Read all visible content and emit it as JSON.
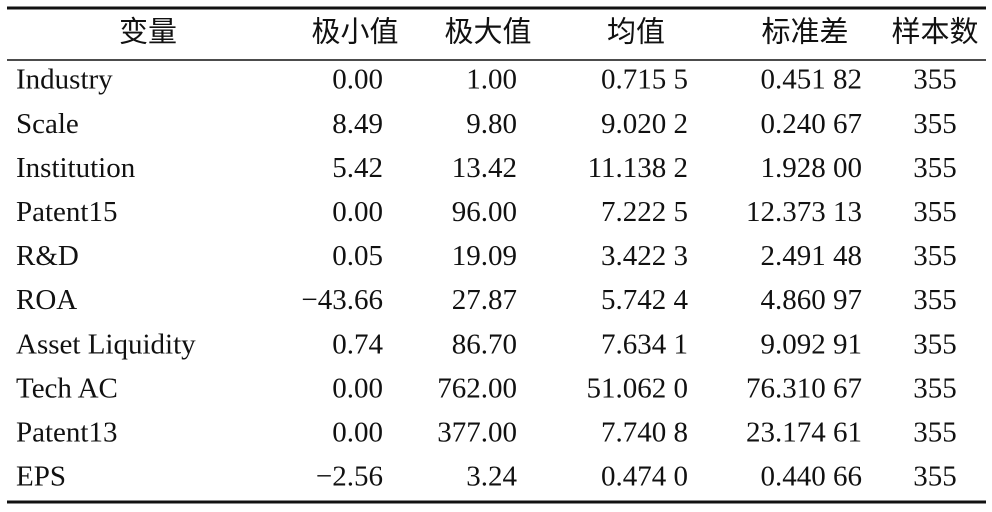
{
  "table": {
    "header": [
      "变量",
      "极小值",
      "极大值",
      "均值",
      "标准差",
      "样本数"
    ],
    "rows": [
      [
        "Industry",
        "0.00",
        "1.00",
        "0.715 5",
        "0.451 82",
        "355"
      ],
      [
        "Scale",
        "8.49",
        "9.80",
        "9.020 2",
        "0.240 67",
        "355"
      ],
      [
        "Institution",
        "5.42",
        "13.42",
        "11.138 2",
        "1.928 00",
        "355"
      ],
      [
        "Patent15",
        "0.00",
        "96.00",
        "7.222 5",
        "12.373 13",
        "355"
      ],
      [
        "R&D",
        "0.05",
        "19.09",
        "3.422 3",
        "2.491 48",
        "355"
      ],
      [
        "ROA",
        "−43.66",
        "27.87",
        "5.742 4",
        "4.860 97",
        "355"
      ],
      [
        "Asset Liquidity",
        "0.74",
        "86.70",
        "7.634 1",
        "9.092 91",
        "355"
      ],
      [
        "Tech AC",
        "0.00",
        "762.00",
        "51.062 0",
        "76.310 67",
        "355"
      ],
      [
        "Patent13",
        "0.00",
        "377.00",
        "7.740 8",
        "23.174 61",
        "355"
      ],
      [
        "EPS",
        "−2.56",
        "3.24",
        "0.474 0",
        "0.440 66",
        "355"
      ]
    ]
  }
}
